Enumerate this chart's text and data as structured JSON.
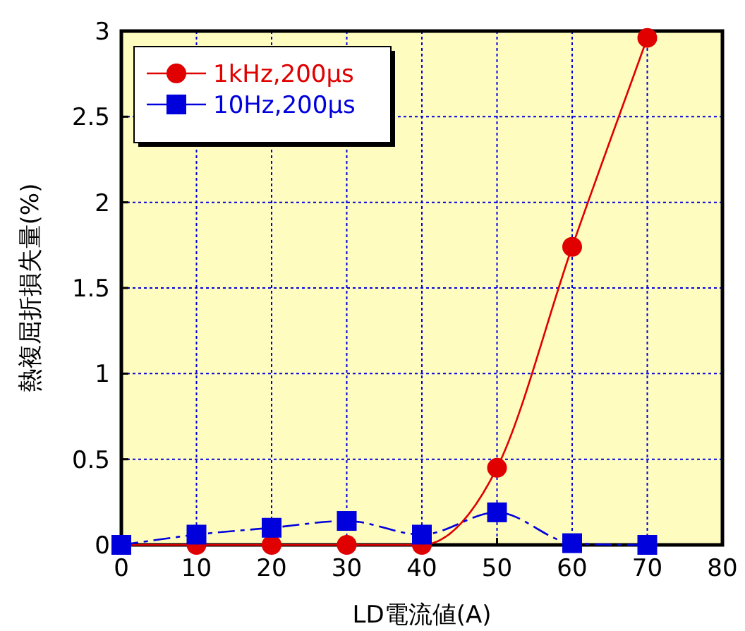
{
  "chart_data": {
    "type": "line",
    "xlabel": "LD電流値(A)",
    "ylabel": "熱複屈折損失量(%)",
    "x": [
      0,
      10,
      20,
      30,
      40,
      50,
      60,
      70
    ],
    "series": [
      {
        "name": "1kHz,200μs",
        "color": "#e00000",
        "values": [
          0,
          0,
          0,
          0,
          0,
          0.45,
          1.74,
          2.96
        ],
        "marker": "circle",
        "line_style": "solid"
      },
      {
        "name": "10Hz,200μs",
        "color": "#0000dd",
        "values": [
          0,
          0.06,
          0.1,
          0.14,
          0.06,
          0.19,
          0.01,
          0
        ],
        "marker": "square",
        "line_style": "dashed"
      }
    ],
    "xlim": [
      0,
      80
    ],
    "ylim": [
      0,
      3
    ],
    "xticks": [
      0,
      10,
      20,
      30,
      40,
      50,
      60,
      70,
      80
    ],
    "yticks": [
      0,
      0.5,
      1,
      1.5,
      2,
      2.5,
      3
    ],
    "grid": true,
    "legend": "top left"
  }
}
